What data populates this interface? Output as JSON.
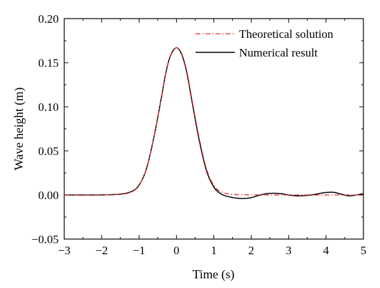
{
  "chart_data": {
    "type": "line",
    "title": "",
    "xlabel": "Time (s)",
    "ylabel": "Wave height (m)",
    "xlim": [
      -3,
      5
    ],
    "ylim": [
      -0.05,
      0.2
    ],
    "x_ticks": [
      -3,
      -2,
      -1,
      0,
      1,
      2,
      3,
      4,
      5
    ],
    "y_ticks": [
      -0.05,
      0.0,
      0.05,
      0.1,
      0.15,
      0.2
    ],
    "x_tick_labels": [
      "−3",
      "−2",
      "−1",
      "0",
      "1",
      "2",
      "3",
      "4",
      "5"
    ],
    "y_tick_labels": [
      "−0.05",
      "0.00",
      "0.05",
      "0.10",
      "0.15",
      "0.20"
    ],
    "grid": false,
    "legend_position": "top-right",
    "series": [
      {
        "name": "Theoretical solution",
        "color": "#e8262c",
        "style": "dash-dot",
        "x": [
          -3,
          -2,
          -1.5,
          -1.2,
          -1.0,
          -0.8,
          -0.6,
          -0.4,
          -0.3,
          -0.2,
          -0.1,
          0,
          0.1,
          0.2,
          0.3,
          0.4,
          0.6,
          0.8,
          1.0,
          1.2,
          1.5,
          2.0,
          2.5,
          3.0,
          3.5,
          4.0,
          4.5,
          5.0
        ],
        "y": [
          0.0,
          0.0001,
          0.0008,
          0.0034,
          0.0108,
          0.0301,
          0.0665,
          0.1119,
          0.1356,
          0.1533,
          0.1635,
          0.167,
          0.1635,
          0.1533,
          0.1356,
          0.1119,
          0.0665,
          0.0301,
          0.0108,
          0.0034,
          0.0008,
          0.0001,
          0.0,
          0.0,
          0.0,
          0.0,
          0.0,
          0.0
        ]
      },
      {
        "name": "Numerical result",
        "color": "#000000",
        "style": "solid",
        "x": [
          -3,
          -2,
          -1.5,
          -1.2,
          -1.0,
          -0.8,
          -0.6,
          -0.4,
          -0.3,
          -0.2,
          -0.1,
          0,
          0.1,
          0.2,
          0.3,
          0.4,
          0.6,
          0.8,
          1.0,
          1.2,
          1.4,
          1.6,
          1.8,
          2.0,
          2.2,
          2.4,
          2.6,
          2.8,
          3.0,
          3.2,
          3.4,
          3.6,
          3.8,
          4.0,
          4.2,
          4.4,
          4.6,
          4.8,
          5.0
        ],
        "y": [
          0.0,
          0.0001,
          0.001,
          0.004,
          0.011,
          0.03,
          0.066,
          0.111,
          0.135,
          0.153,
          0.163,
          0.167,
          0.163,
          0.152,
          0.134,
          0.11,
          0.064,
          0.028,
          0.009,
          0.001,
          -0.002,
          -0.0035,
          -0.004,
          -0.003,
          -0.0005,
          0.0015,
          0.002,
          0.0015,
          0.0,
          -0.001,
          -0.0008,
          0.0,
          0.0015,
          0.0028,
          0.003,
          0.001,
          -0.001,
          0.0,
          0.0015
        ]
      }
    ]
  }
}
